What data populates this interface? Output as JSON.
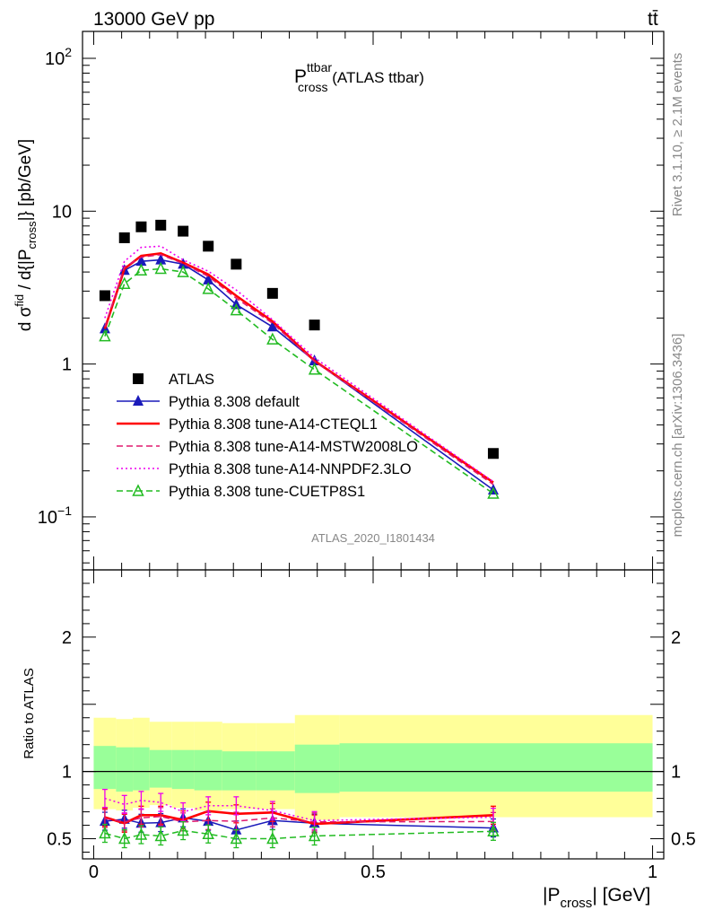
{
  "header": {
    "energy": "13000 GeV pp",
    "process": "tt̄"
  },
  "side_text": {
    "rivet": "Rivet 3.1.10, ≥ 2.1M events",
    "mcplots": "mcplots.cern.ch [arXiv:1306.3436]"
  },
  "chart_data": [
    {
      "type": "scatter",
      "panel": "main",
      "title": "P_cross^ttbar (ATLAS ttbar)",
      "title_parts": {
        "main": "P",
        "sup": "ttbar",
        "sub": "cross",
        "rest": " (ATLAS ttbar)"
      },
      "analysis_tag": "ATLAS_2020_I1801434",
      "ylabel": "dσ^fid / d{|P_cross|} [pb/GeV]",
      "yscale": "log",
      "ylim": [
        0.045,
        150
      ],
      "xlim": [
        -0.02,
        1.02
      ],
      "y_ticks": [
        {
          "value": 100,
          "label": "10",
          "sup": "2"
        },
        {
          "value": 10,
          "label": "10",
          "sup": ""
        },
        {
          "value": 1,
          "label": "1",
          "sup": ""
        },
        {
          "value": 0.1,
          "label": "10",
          "sup": "−1"
        }
      ],
      "legend_position": "lower-left",
      "x": [
        0.02,
        0.055,
        0.085,
        0.12,
        0.16,
        0.205,
        0.255,
        0.32,
        0.395,
        0.715
      ],
      "series": [
        {
          "name": "ATLAS",
          "color": "#000000",
          "style": "square",
          "values": [
            2.8,
            6.7,
            7.9,
            8.1,
            7.4,
            5.9,
            4.5,
            2.9,
            1.8,
            0.26
          ]
        },
        {
          "name": "Pythia 8.308 default",
          "color": "#1a1aba",
          "style": "solid-triangle",
          "values": [
            1.7,
            4.1,
            4.7,
            4.8,
            4.5,
            3.55,
            2.45,
            1.75,
            1.05,
            0.15
          ]
        },
        {
          "name": "Pythia 8.308 tune-A14-CTEQL1",
          "color": "#ff0000",
          "style": "solid-thick",
          "values": [
            1.7,
            4.2,
            5.1,
            5.3,
            4.6,
            3.85,
            2.8,
            1.9,
            1.05,
            0.168
          ]
        },
        {
          "name": "Pythia 8.308 tune-A14-MSTW2008LO",
          "color": "#e0186e",
          "style": "dashed",
          "values": [
            1.75,
            4.3,
            5.0,
            5.2,
            4.55,
            3.75,
            2.7,
            1.85,
            1.04,
            0.163
          ]
        },
        {
          "name": "Pythia 8.308 tune-A14-NNPDF2.3LO",
          "color": "#ee00ee",
          "style": "dotted",
          "values": [
            2.0,
            4.7,
            5.8,
            5.9,
            4.8,
            4.05,
            3.05,
            1.95,
            1.1,
            0.17
          ]
        },
        {
          "name": "Pythia 8.308 tune-CUETP8S1",
          "color": "#22bb22",
          "style": "dashed-open-triangle",
          "values": [
            1.52,
            3.35,
            4.1,
            4.2,
            4.0,
            3.1,
            2.25,
            1.45,
            0.92,
            0.142
          ]
        }
      ]
    },
    {
      "type": "line",
      "panel": "ratio",
      "ylabel": "Ratio to ATLAS",
      "xlabel": "|P_cross| [GeV]",
      "ylim": [
        0.35,
        2.5
      ],
      "xlim": [
        -0.02,
        1.02
      ],
      "x_ticks": [
        0,
        0.5,
        1
      ],
      "y_ticks": [
        0.5,
        1,
        2
      ],
      "reference": 1,
      "band_edges": [
        0,
        0.04,
        0.07,
        0.1,
        0.14,
        0.18,
        0.23,
        0.29,
        0.36,
        0.44,
        1.0
      ],
      "band_outer": [
        [
          0.72,
          1.4
        ],
        [
          0.71,
          1.39
        ],
        [
          0.73,
          1.4
        ],
        [
          0.75,
          1.37
        ],
        [
          0.73,
          1.37
        ],
        [
          0.71,
          1.37
        ],
        [
          0.72,
          1.36
        ],
        [
          0.72,
          1.36
        ],
        [
          0.64,
          1.42
        ],
        [
          0.66,
          1.42
        ]
      ],
      "band_inner": [
        [
          0.87,
          1.19
        ],
        [
          0.85,
          1.18
        ],
        [
          0.86,
          1.18
        ],
        [
          0.88,
          1.16
        ],
        [
          0.87,
          1.16
        ],
        [
          0.86,
          1.16
        ],
        [
          0.86,
          1.15
        ],
        [
          0.86,
          1.15
        ],
        [
          0.84,
          1.2
        ],
        [
          0.85,
          1.21
        ]
      ],
      "band_colors": {
        "outer": "#ffff99",
        "inner": "#99ff99"
      },
      "x": [
        0.02,
        0.055,
        0.085,
        0.12,
        0.16,
        0.205,
        0.255,
        0.32,
        0.395,
        0.715
      ],
      "series": [
        {
          "name": "Pythia 8.308 default",
          "color": "#1a1aba",
          "values": [
            0.63,
            0.645,
            0.615,
            0.62,
            0.655,
            0.63,
            0.565,
            0.635,
            0.615,
            0.58
          ]
        },
        {
          "name": "Pythia 8.308 tune-A14-CTEQL1",
          "color": "#ff0000",
          "values": [
            0.66,
            0.615,
            0.675,
            0.675,
            0.64,
            0.705,
            0.685,
            0.695,
            0.61,
            0.675
          ]
        },
        {
          "name": "Pythia 8.308 tune-A14-MSTW2008LO",
          "color": "#e0186e",
          "values": [
            0.65,
            0.625,
            0.655,
            0.665,
            0.625,
            0.635,
            0.63,
            0.655,
            0.625,
            0.628
          ]
        },
        {
          "name": "Pythia 8.308 tune-A14-NNPDF2.3LO",
          "color": "#ee00ee",
          "values": [
            0.8,
            0.755,
            0.785,
            0.77,
            0.7,
            0.745,
            0.745,
            0.71,
            0.635,
            0.66
          ]
        },
        {
          "name": "Pythia 8.308 tune-CUETP8S1",
          "color": "#22bb22",
          "values": [
            0.54,
            0.5,
            0.53,
            0.52,
            0.56,
            0.535,
            0.5,
            0.5,
            0.52,
            0.555
          ]
        }
      ]
    }
  ]
}
